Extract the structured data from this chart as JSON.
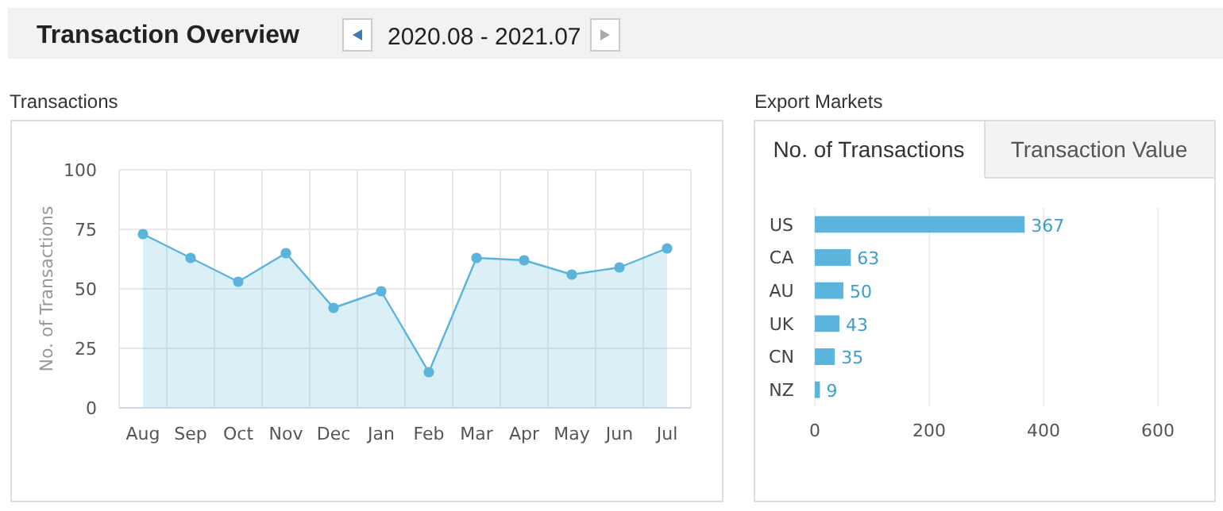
{
  "chart_data": [
    {
      "type": "area",
      "title": "Transactions",
      "ylabel": "No. of Transactions",
      "annotations": [
        "Transaction Overview",
        "2020.08 - 2021.07"
      ],
      "categories": [
        "Aug",
        "Sep",
        "Oct",
        "Nov",
        "Dec",
        "Jan",
        "Feb",
        "Mar",
        "Apr",
        "May",
        "Jun",
        "Jul"
      ],
      "series": [
        {
          "color": "#5ab4dc",
          "values": [
            73,
            63,
            53,
            65,
            42,
            49,
            15,
            63,
            62,
            56,
            59,
            67
          ]
        }
      ],
      "ylim": [
        0,
        100
      ],
      "yticks": [
        0,
        25,
        50,
        75,
        100
      ],
      "grid": true,
      "marker": "circle",
      "line_style": "solid"
    },
    {
      "type": "bar",
      "orientation": "horizontal",
      "title": "Export Markets",
      "annotations": [
        "No. of Transactions",
        "Transaction Value"
      ],
      "categories": [
        "US",
        "CA",
        "AU",
        "UK",
        "CN",
        "NZ"
      ],
      "values": [
        367,
        63,
        50,
        43,
        35,
        9
      ],
      "color": "#5ab4dc",
      "data_labels": true,
      "xlim": [
        0,
        600
      ],
      "xticks": [
        0,
        200,
        400,
        600
      ],
      "grid": "x"
    }
  ]
}
